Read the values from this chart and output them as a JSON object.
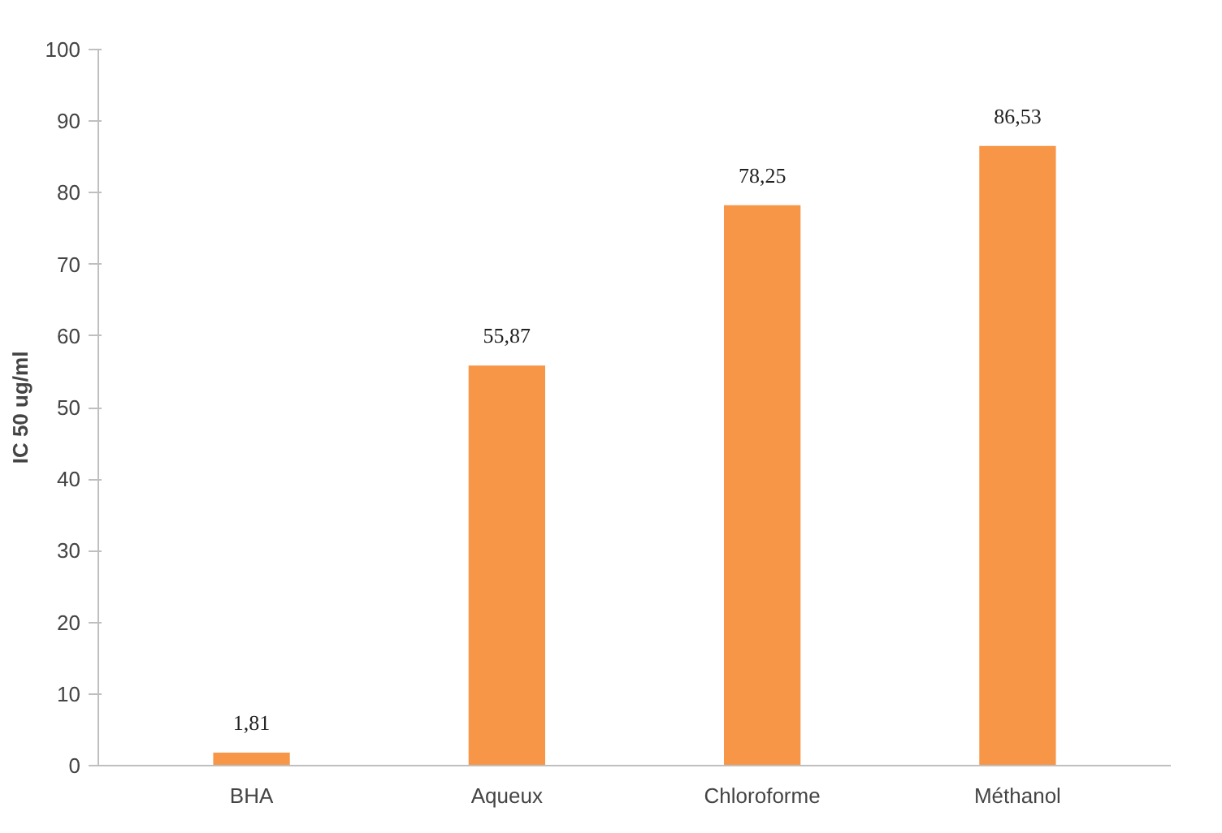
{
  "chart_data": {
    "type": "bar",
    "ylabel": "IC 50 ug/ml",
    "categories": [
      "BHA",
      "Aqueux",
      "Chloroforme",
      "Méthanol"
    ],
    "values": [
      1.81,
      55.87,
      78.25,
      86.53
    ],
    "value_labels": [
      "1,81",
      "55,87",
      "78,25",
      "86,53"
    ],
    "color": "#f79646",
    "ylim": [
      0,
      100
    ],
    "yticks": [
      0,
      10,
      20,
      30,
      40,
      50,
      60,
      70,
      80,
      90,
      100
    ],
    "grid": false
  }
}
